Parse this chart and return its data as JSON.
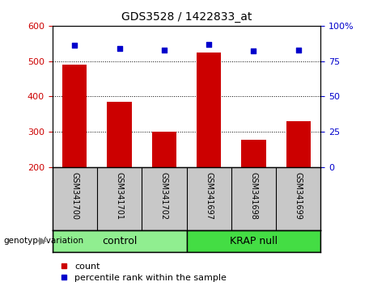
{
  "title": "GDS3528 / 1422833_at",
  "samples": [
    "GSM341700",
    "GSM341701",
    "GSM341702",
    "GSM341697",
    "GSM341698",
    "GSM341699"
  ],
  "counts": [
    490,
    385,
    300,
    525,
    278,
    330
  ],
  "percentile_ranks": [
    86,
    84,
    83,
    87,
    82,
    83
  ],
  "ylim_left": [
    200,
    600
  ],
  "ylim_right": [
    0,
    100
  ],
  "yticks_left": [
    200,
    300,
    400,
    500,
    600
  ],
  "yticks_right": [
    0,
    25,
    50,
    75,
    100
  ],
  "bar_color": "#CC0000",
  "dot_color": "#0000CC",
  "bar_width": 0.55,
  "label_count": "count",
  "label_percentile": "percentile rank within the sample",
  "panel_color": "#C8C8C8",
  "ctrl_color": "#90EE90",
  "krap_color": "#44DD44",
  "n_ctrl": 3,
  "n_krap": 3,
  "title_fontsize": 10,
  "tick_fontsize": 8,
  "legend_fontsize": 8,
  "sample_fontsize": 7,
  "group_fontsize": 9
}
